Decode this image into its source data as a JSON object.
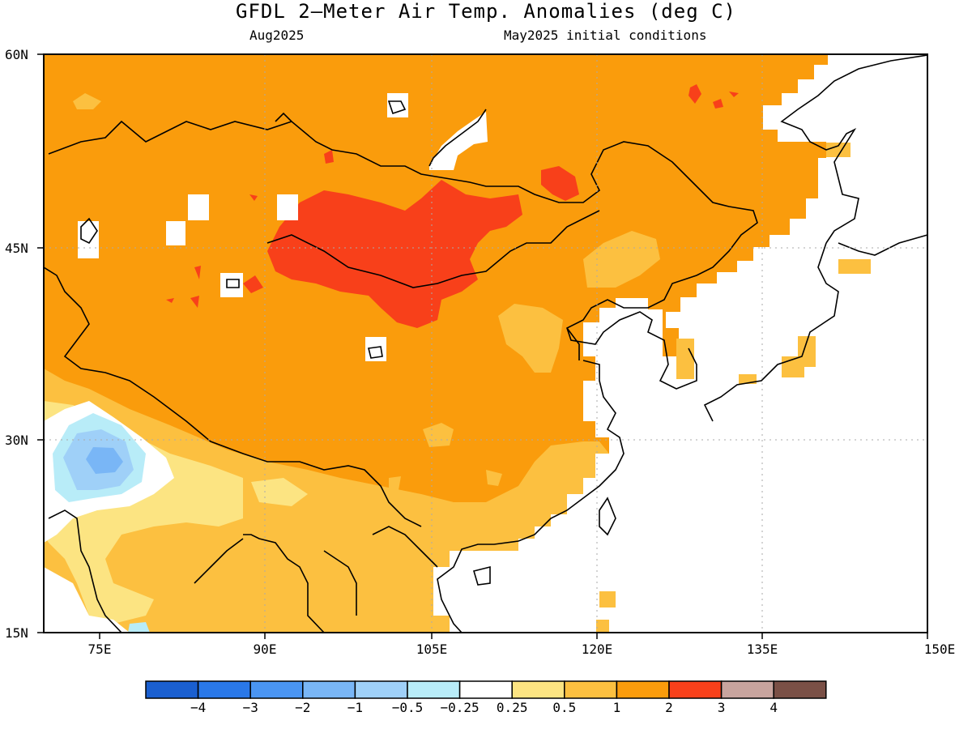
{
  "title": "GFDL 2—Meter Air Temp. Anomalies (deg C)",
  "subtitle_left": "Aug2025",
  "subtitle_right": "May2025 initial conditions",
  "lat_labels": [
    "60N",
    "45N",
    "30N",
    "15N"
  ],
  "lon_labels": [
    "75E",
    "90E",
    "105E",
    "120E",
    "135E",
    "150E"
  ],
  "colorbar": {
    "colors": [
      "#1a5fd0",
      "#2a78e8",
      "#4a95f2",
      "#79b6f6",
      "#9fd0f8",
      "#b8ecf8",
      "#ffffff",
      "#fce482",
      "#fcc040",
      "#fa9c0c",
      "#f8401a",
      "#c8a49e",
      "#7a5046"
    ],
    "labels": [
      "−4",
      "−3",
      "−2",
      "−1",
      "−0.5",
      "−0.25",
      "0.25",
      "0.5",
      "1",
      "2",
      "3",
      "4"
    ]
  },
  "legend_colors": {
    "light_yellow": "#fce482",
    "light_orange": "#fcc040",
    "orange": "#fa9c0c",
    "red": "#f8401a",
    "light_blue": "#b8ecf8",
    "mid_blue": "#79b6f6"
  }
}
